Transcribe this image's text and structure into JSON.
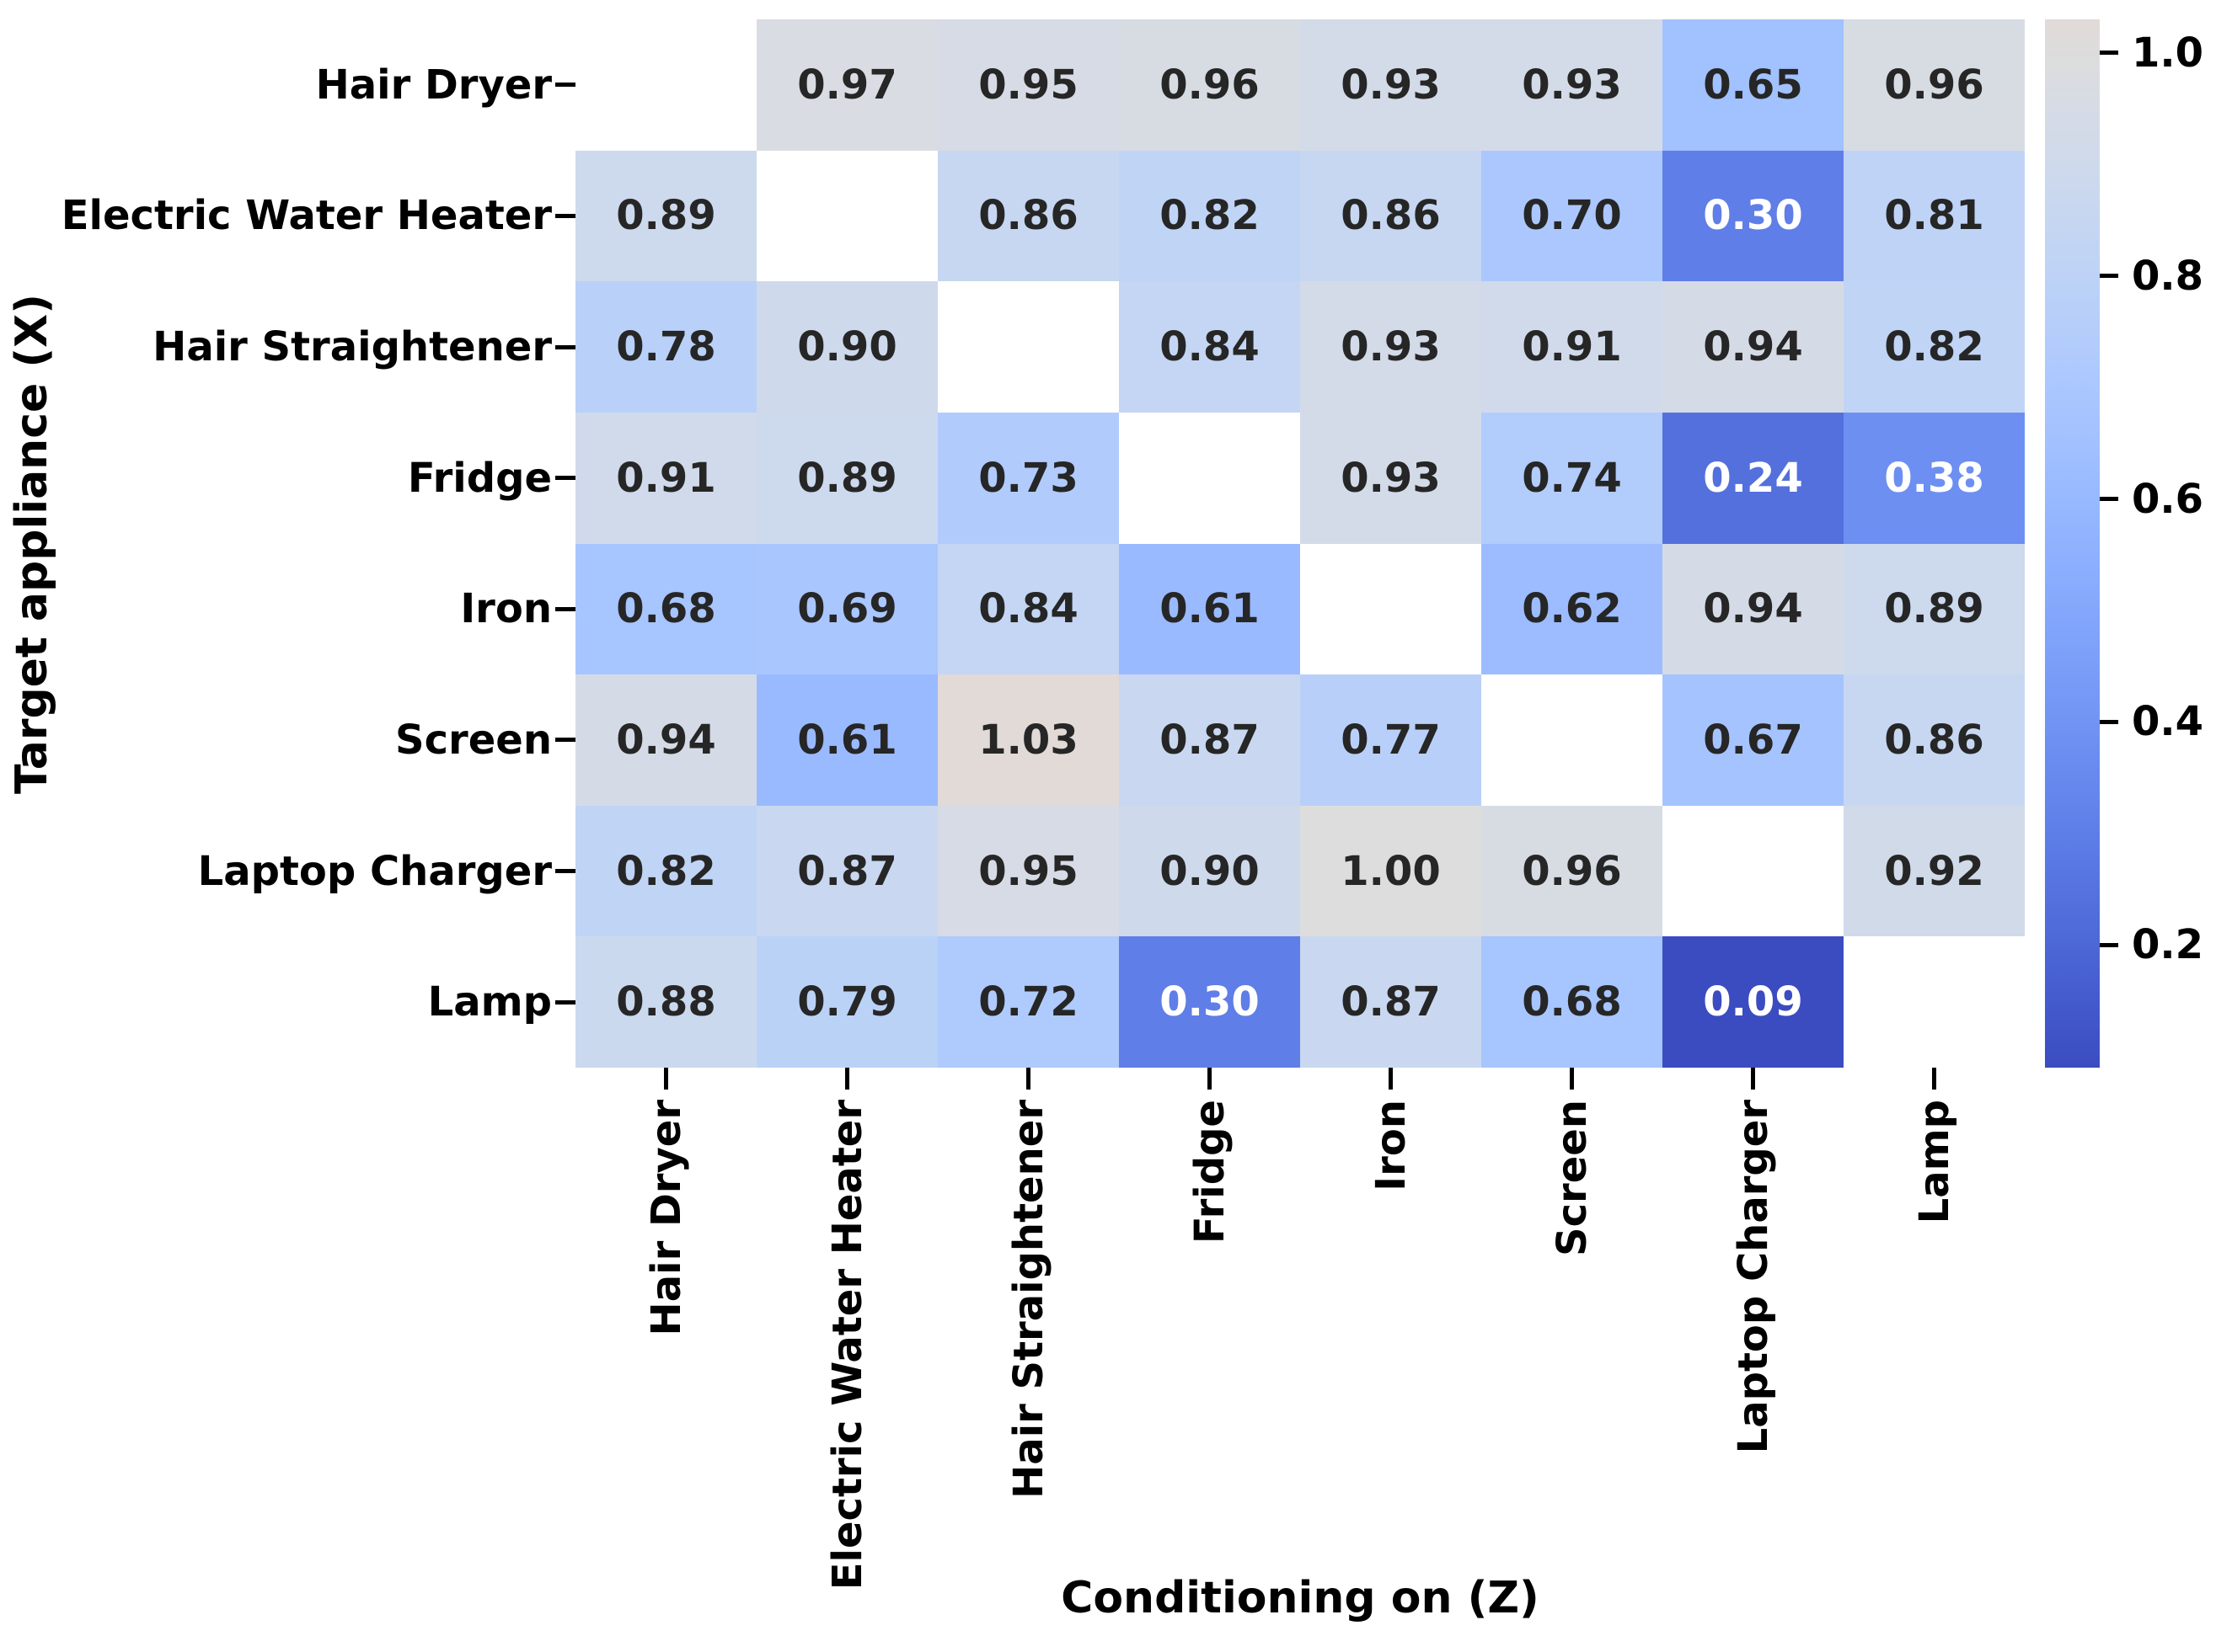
{
  "chart_data": {
    "type": "heatmap",
    "title": "",
    "xlabel": "Conditioning on (Z)",
    "ylabel": "Target appliance (X)",
    "x_categories": [
      "Hair Dryer",
      "Electric Water Heater",
      "Hair Straightener",
      "Fridge",
      "Iron",
      "Screen",
      "Laptop Charger",
      "Lamp"
    ],
    "y_categories": [
      "Hair Dryer",
      "Electric Water Heater",
      "Hair Straightener",
      "Fridge",
      "Iron",
      "Screen",
      "Laptop Charger",
      "Lamp"
    ],
    "matrix": [
      [
        null,
        0.97,
        0.95,
        0.96,
        0.93,
        0.93,
        0.65,
        0.96
      ],
      [
        0.89,
        null,
        0.86,
        0.82,
        0.86,
        0.7,
        0.3,
        0.81
      ],
      [
        0.78,
        0.9,
        null,
        0.84,
        0.93,
        0.91,
        0.94,
        0.82
      ],
      [
        0.91,
        0.89,
        0.73,
        null,
        0.93,
        0.74,
        0.24,
        0.38
      ],
      [
        0.68,
        0.69,
        0.84,
        0.61,
        null,
        0.62,
        0.94,
        0.89
      ],
      [
        0.94,
        0.61,
        1.03,
        0.87,
        0.77,
        null,
        0.67,
        0.86
      ],
      [
        0.82,
        0.87,
        0.95,
        0.9,
        1.0,
        0.96,
        null,
        0.92
      ],
      [
        0.88,
        0.79,
        0.72,
        0.3,
        0.87,
        0.68,
        0.09,
        null
      ]
    ],
    "diagonal_masked": true,
    "cell_label_decimals": 2,
    "vmin": 0.09,
    "vmax": 1.03,
    "center": 1.0,
    "colormap": "coolwarm",
    "colorbar_ticks": [
      1.0,
      0.8,
      0.6,
      0.4,
      0.2
    ],
    "colorbar_position": "right",
    "grid": false,
    "colors": {
      "low_end": "#3b4cc0",
      "center_gray": "#dddcdc",
      "high_end_warm": "#e1dad7",
      "masked_cell": "#ffffff",
      "annotation_dark": "#262626",
      "annotation_light": "#ffffff",
      "tick_color": "#000000"
    }
  }
}
